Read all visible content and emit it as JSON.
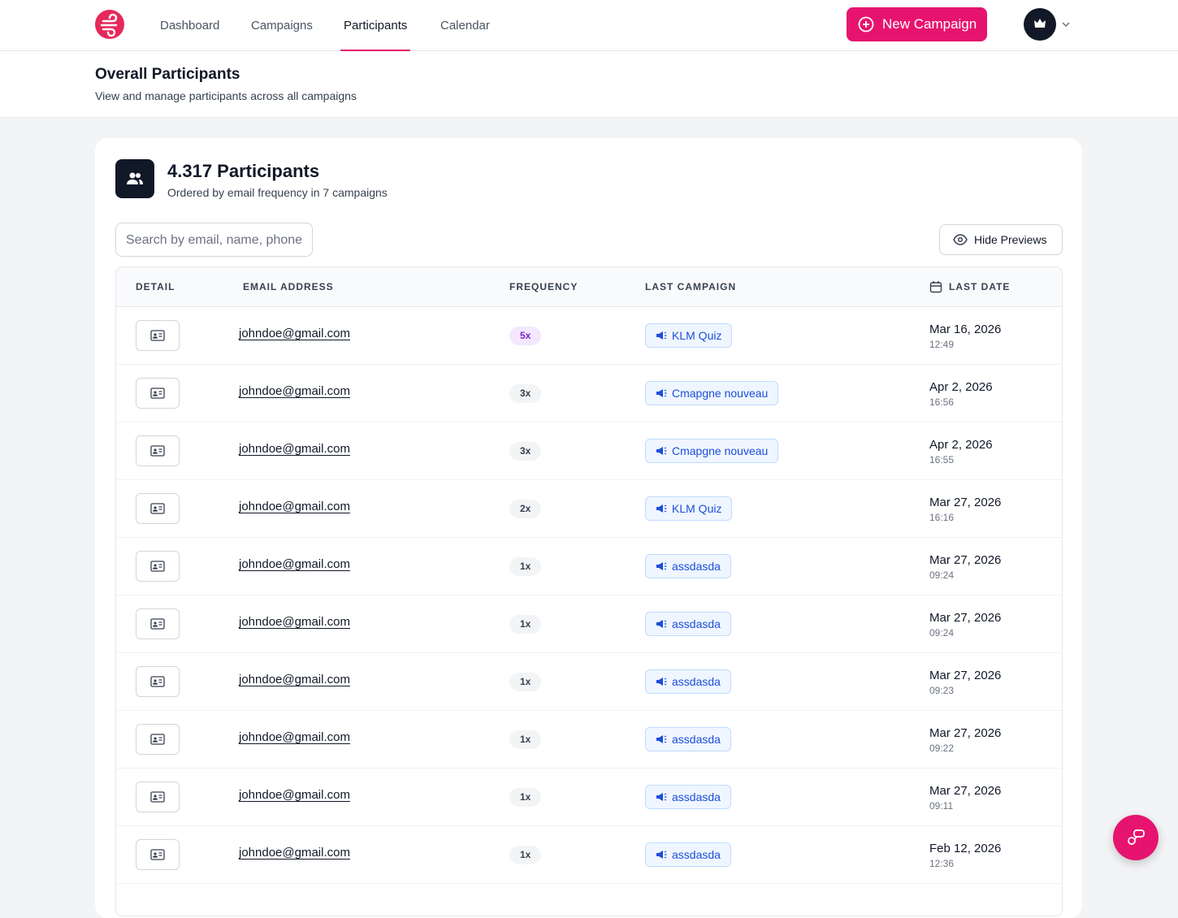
{
  "nav": {
    "items": [
      "Dashboard",
      "Campaigns",
      "Participants",
      "Calendar"
    ],
    "active": 2,
    "new_campaign": "New Campaign"
  },
  "header": {
    "title": "Overall Participants",
    "subtitle": "View and manage participants across all campaigns"
  },
  "card": {
    "title": "4.317 Participants",
    "subtitle": "Ordered by email frequency in 7 campaigns",
    "search_placeholder": "Search by email, name, phone",
    "hide_previews": "Hide Previews"
  },
  "table": {
    "columns": [
      "DETAIL",
      "EMAIL ADDRESS",
      "FREQUENCY",
      "LAST CAMPAIGN",
      "LAST DATE"
    ],
    "rows": [
      {
        "email": "johndoe@gmail.com",
        "frequency": "5x",
        "campaign": "KLM Quiz",
        "date": "Mar 16, 2026",
        "time": "12:49"
      },
      {
        "email": "johndoe@gmail.com",
        "frequency": "3x",
        "campaign": "Cmapgne nouveau",
        "date": "Apr 2, 2026",
        "time": "16:56"
      },
      {
        "email": "johndoe@gmail.com",
        "frequency": "3x",
        "campaign": "Cmapgne nouveau",
        "date": "Apr 2, 2026",
        "time": "16:55"
      },
      {
        "email": "johndoe@gmail.com",
        "frequency": "2x",
        "campaign": "KLM Quiz",
        "date": "Mar 27, 2026",
        "time": "16:16"
      },
      {
        "email": "johndoe@gmail.com",
        "frequency": "1x",
        "campaign": "assdasda",
        "date": "Mar 27, 2026",
        "time": "09:24"
      },
      {
        "email": "johndoe@gmail.com",
        "frequency": "1x",
        "campaign": "assdasda",
        "date": "Mar 27, 2026",
        "time": "09:24"
      },
      {
        "email": "johndoe@gmail.com",
        "frequency": "1x",
        "campaign": "assdasda",
        "date": "Mar 27, 2026",
        "time": "09:23"
      },
      {
        "email": "johndoe@gmail.com",
        "frequency": "1x",
        "campaign": "assdasda",
        "date": "Mar 27, 2026",
        "time": "09:22"
      },
      {
        "email": "johndoe@gmail.com",
        "frequency": "1x",
        "campaign": "assdasda",
        "date": "Mar 27, 2026",
        "time": "09:11"
      },
      {
        "email": "johndoe@gmail.com",
        "frequency": "1x",
        "campaign": "assdasda",
        "date": "Feb 12, 2026",
        "time": "12:36"
      }
    ]
  }
}
